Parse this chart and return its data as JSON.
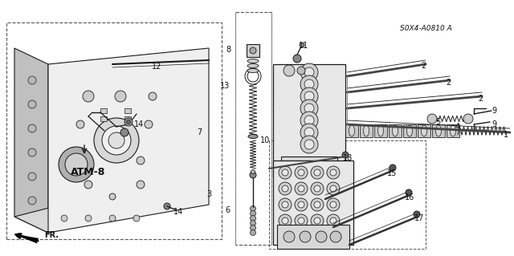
{
  "bg_color": "#ffffff",
  "line_color": "#1a1a1a",
  "text_color": "#111111",
  "label_fontsize": 7.0,
  "atm_label": "ATM-8",
  "diagram_code": "S0X4-A0810 A",
  "dashed_color": "#555555",
  "gray_fill": "#d8d8d8",
  "light_gray": "#eeeeee",
  "mid_gray": "#bbbbbb"
}
